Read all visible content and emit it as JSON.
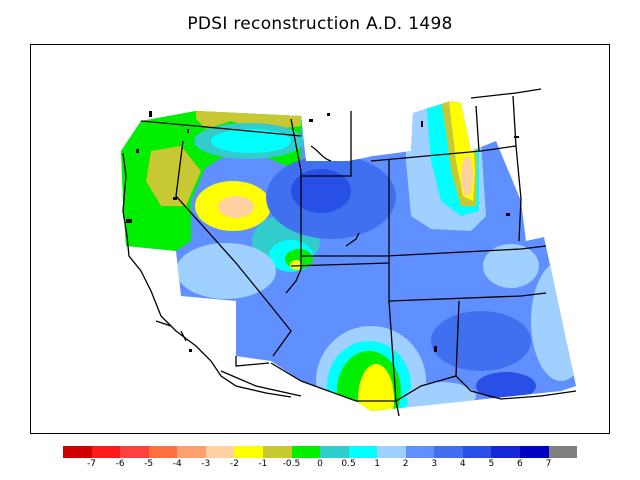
{
  "title": "PDSI reconstruction A.D. 1498",
  "legend": {
    "colors": [
      "#d00000",
      "#ff1a1a",
      "#ff4040",
      "#ff7040",
      "#ffa070",
      "#ffd0a0",
      "#ffff00",
      "#c8c832",
      "#00ee00",
      "#33cccc",
      "#00ffff",
      "#a0d0ff",
      "#6090ff",
      "#4070f0",
      "#2850e6",
      "#1428d8",
      "#0000c0",
      "#808080"
    ],
    "labels": [
      "-7",
      "-6",
      "-5",
      "-4",
      "-3",
      "-2",
      "-1",
      "-0.5",
      "0",
      "0.5",
      "1",
      "2",
      "3",
      "4",
      "5",
      "6",
      "7"
    ]
  }
}
